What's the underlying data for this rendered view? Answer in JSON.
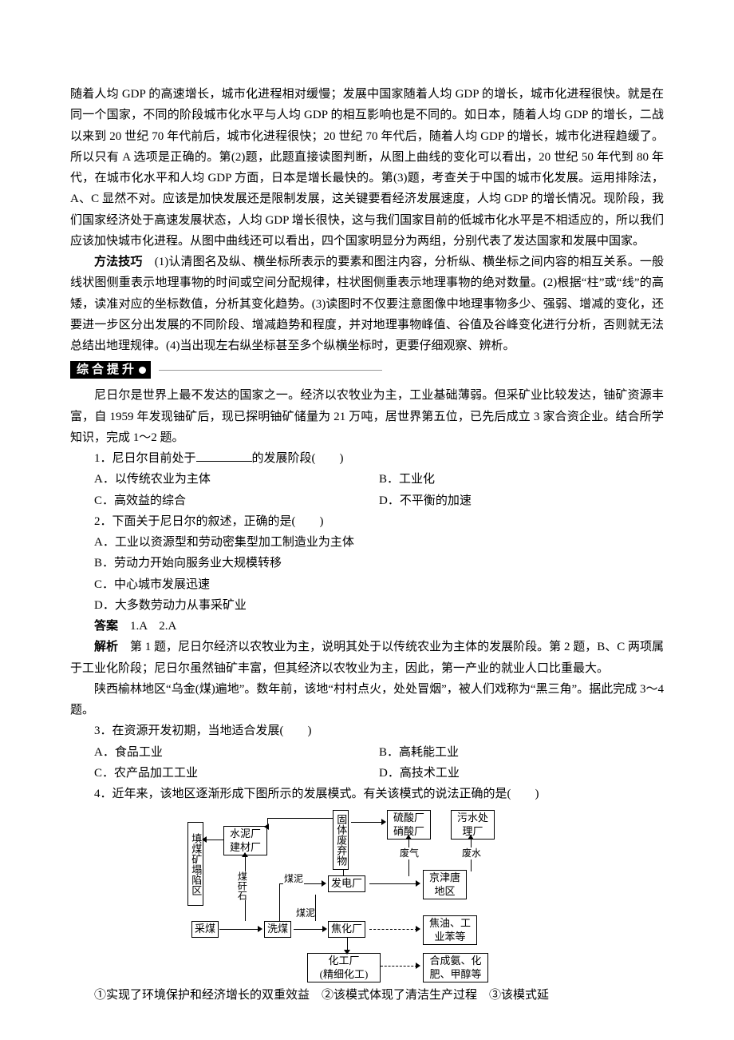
{
  "top_para": "随着人均 GDP 的高速增长，城市化进程相对缓慢；发展中国家随着人均 GDP 的增长，城市化进程很快。就是在同一个国家，不同的阶段城市化水平与人均 GDP 的相互影响也是不同的。如日本，随着人均 GDP 的增长，二战以来到 20 世纪 70 年代前后，城市化进程很快；20 世纪 70 年代后，随着人均 GDP 的增长，城市化进程趋缓了。所以只有 A 选项是正确的。第(2)题，此题直接读图判断，从图上曲线的变化可以看出，20 世纪 50 年代到 80 年代，在城市化水平和人均 GDP 方面，日本是增长最快的。第(3)题，考查关于中国的城市化发展。运用排除法，A、C 显然不对。应该是加快发展还是限制发展，这关键要看经济发展速度，人均 GDP 的增长情况。现阶段，我们国家经济处于高速发展状态，人均 GDP 增长很快，这与我们国家目前的低城市化水平是不相适应的，所以我们应该加快城市化进程。从图中曲线还可以看出，四个国家明显分为两组，分别代表了发达国家和发展中国家。",
  "method": {
    "label": "方法技巧",
    "text": "　(1)认清图名及纵、横坐标所表示的要素和图注内容，分析纵、横坐标之间内容的相互关系。一般线状图侧重表示地理事物的时间或空间分配规律，柱状图侧重表示地理事物的绝对数量。(2)根据“柱”或“线”的高矮，读准对应的坐标数值，分析其变化趋势。(3)读图时不仅要注意图像中地理事物多少、强弱、增减的变化，还要进一步区分出发展的不同阶段、增减趋势和程度，并对地理事物峰值、谷值及谷峰变化进行分析，否则就无法总结出地理规律。(4)当出现左右纵坐标甚至多个纵横坐标时，更要仔细观察、辨析。"
  },
  "section_badge": "综合提升",
  "niger_intro": "尼日尔是世界上最不发达的国家之一。经济以农牧业为主，工业基础薄弱。但采矿业比较发达，铀矿资源丰富，自 1959 年发现铀矿后，现已探明铀矿储量为 21 万吨，居世界第五位，已先后成立 3 家合资企业。结合所学知识，完成 1～2 题。",
  "q1": {
    "stem_a": "1．尼日尔目前处于",
    "stem_b": "的发展阶段(　　)",
    "A": "A．以传统农业为主体",
    "B": "B．工业化",
    "C": "C．高效益的综合",
    "D": "D．不平衡的加速"
  },
  "q2": {
    "stem": "2．下面关于尼日尔的叙述，正确的是(　　)",
    "A": "A．工业以资源型和劳动密集型加工制造业为主体",
    "B": "B．劳动力开始向服务业大规模转移",
    "C": "C．中心城市发展迅速",
    "D": "D．大多数劳动力从事采矿业"
  },
  "ans_12_label": "答案",
  "ans_12_text": "　1.A　2.A",
  "exp_12_label": "解析",
  "exp_12_text": "　第 1 题，尼日尔经济以农牧业为主，说明其处于以传统农业为主体的发展阶段。第 2 题，B、C 两项属于工业化阶段；尼日尔虽然铀矿丰富，但其经济以农牧业为主，因此，第一产业的就业人口比重最大。",
  "yulin_intro": "陕西榆林地区“乌金(煤)遍地”。数年前，该地“村村点火，处处冒烟”，被人们戏称为“黑三角”。据此完成 3～4 题。",
  "q3": {
    "stem": "3．在资源开发初期，当地适合发展(　　)",
    "A": "A．食品工业",
    "B": "B．高耗能工业",
    "C": "C．农产品加工工业",
    "D": "D．高技术工业"
  },
  "q4": {
    "stem": "4．近年来，该地区逐渐形成下图所示的发展模式。有关该模式的说法正确的是(　　)"
  },
  "flow": {
    "coal_pit": "填煤矿塌陷区",
    "cement": "水泥厂\n建材厂",
    "mine": "采煤",
    "wash": "洗煤",
    "coke": "焦化厂",
    "power": "发电厂",
    "chem": "化工厂\n(精细化工)",
    "waste_box": "固体废弃物",
    "sulf": "硫酸厂\n硝酸厂",
    "sewage": "污水处\n理厂",
    "jjt": "京津唐\n地区",
    "jiaoyou": "焦油、工\n业苯等",
    "synth": "合成氨、化\n肥、甲醇等",
    "lbl_gangue": "煤矸石",
    "lbl_mud1": "煤泥",
    "lbl_mud2": "煤泥",
    "lbl_gas": "废气",
    "lbl_water": "废水"
  },
  "q4_choices": "①实现了环境保护和经济增长的双重效益　②该模式体现了清洁生产过程　③该模式延"
}
